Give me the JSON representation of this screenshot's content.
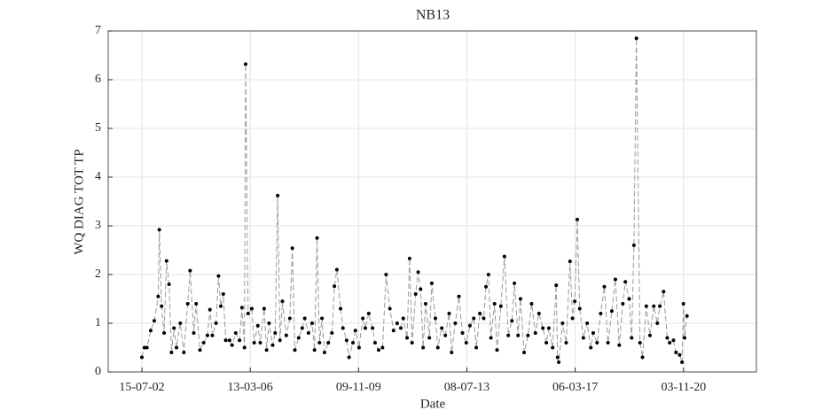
{
  "chart_data": {
    "type": "line",
    "title": "NB13",
    "xlabel": "Date",
    "ylabel": "WQ DIAG TOT TP",
    "x": [
      "15-07-02",
      "15-08-02",
      "15-09-02",
      "01-11-02",
      "15-12-02",
      "01-02-03",
      "15-02-03",
      "15-03-03",
      "15-04-03",
      "15-05-03",
      "15-06-03",
      "15-07-03",
      "15-08-03",
      "15-09-03",
      "01-11-03",
      "15-12-03",
      "01-02-04",
      "01-03-04",
      "15-04-04",
      "15-05-04",
      "01-07-04",
      "15-08-04",
      "01-10-04",
      "01-11-04",
      "01-12-04",
      "15-01-05",
      "15-02-05",
      "15-03-05",
      "15-04-05",
      "15-05-05",
      "01-07-05",
      "01-08-05",
      "15-09-05",
      "01-11-05",
      "01-12-05",
      "01-01-06",
      "15-01-06",
      "15-02-06",
      "01-04-06",
      "01-05-06",
      "15-06-06",
      "15-07-06",
      "01-09-06",
      "01-10-06",
      "01-11-06",
      "15-12-06",
      "15-01-07",
      "15-02-07",
      "15-03-07",
      "15-04-07",
      "01-06-07",
      "15-07-07",
      "15-08-07",
      "15-09-07",
      "01-11-07",
      "15-12-07",
      "15-01-08",
      "01-03-08",
      "15-04-08",
      "15-05-08",
      "15-06-08",
      "15-07-08",
      "15-08-08",
      "15-09-08",
      "01-11-08",
      "15-12-08",
      "15-01-09",
      "15-02-09",
      "01-04-09",
      "01-05-09",
      "15-06-09",
      "15-07-09",
      "01-09-09",
      "01-10-09",
      "15-11-09",
      "01-01-10",
      "01-02-10",
      "15-03-10",
      "01-05-10",
      "01-06-10",
      "15-07-10",
      "01-09-10",
      "15-10-10",
      "01-12-10",
      "15-01-11",
      "01-03-11",
      "15-04-11",
      "15-05-11",
      "01-07-11",
      "01-08-11",
      "01-09-11",
      "15-10-11",
      "15-11-11",
      "15-12-11",
      "15-01-12",
      "15-02-12",
      "01-04-12",
      "01-05-12",
      "15-06-12",
      "15-07-12",
      "01-09-12",
      "15-10-12",
      "01-12-12",
      "01-01-13",
      "15-02-13",
      "01-04-13",
      "15-05-13",
      "01-07-13",
      "15-08-13",
      "01-10-13",
      "01-11-13",
      "15-12-13",
      "01-02-14",
      "01-03-14",
      "01-04-14",
      "01-05-14",
      "15-06-14",
      "15-07-14",
      "01-09-14",
      "15-10-14",
      "01-12-14",
      "15-01-15",
      "15-02-15",
      "01-04-15",
      "01-05-15",
      "15-06-15",
      "01-08-15",
      "15-09-15",
      "01-11-15",
      "15-12-15",
      "01-02-16",
      "15-03-16",
      "15-04-16",
      "01-06-16",
      "15-07-16",
      "01-08-16",
      "15-08-16",
      "01-10-16",
      "15-11-16",
      "01-01-17",
      "01-02-17",
      "01-03-17",
      "01-04-17",
      "01-05-17",
      "15-06-17",
      "01-08-17",
      "15-09-17",
      "15-10-17",
      "01-12-17",
      "15-01-18",
      "01-03-18",
      "15-04-18",
      "01-06-18",
      "15-07-18",
      "01-09-18",
      "15-10-18",
      "15-11-18",
      "01-01-19",
      "01-02-19",
      "01-03-19",
      "01-04-19",
      "15-05-19",
      "15-06-19",
      "01-08-19",
      "15-09-19",
      "01-11-19",
      "15-12-19",
      "15-01-20",
      "01-03-20",
      "15-04-20",
      "15-05-20",
      "01-07-20",
      "01-08-20",
      "15-09-20",
      "15-10-20",
      "01-11-20",
      "15-11-20",
      "15-12-20"
    ],
    "series": [
      {
        "color": "#000000",
        "values": [
          0.3,
          0.5,
          0.5,
          0.85,
          1.05,
          1.55,
          2.92,
          1.35,
          0.8,
          2.28,
          1.8,
          0.4,
          0.9,
          0.5,
          1.0,
          0.4,
          1.4,
          2.08,
          0.8,
          1.4,
          0.45,
          0.6,
          0.75,
          1.28,
          0.75,
          1.0,
          1.97,
          1.35,
          1.6,
          0.65,
          0.65,
          0.55,
          0.8,
          0.65,
          1.32,
          0.5,
          6.32,
          1.2,
          1.3,
          0.6,
          0.95,
          0.6,
          1.3,
          0.45,
          1.0,
          0.55,
          0.8,
          3.62,
          0.65,
          1.45,
          0.75,
          1.1,
          2.54,
          0.45,
          0.7,
          0.9,
          1.1,
          0.8,
          1.0,
          0.45,
          2.75,
          0.6,
          1.1,
          0.4,
          0.6,
          0.8,
          1.76,
          2.1,
          1.3,
          0.9,
          0.65,
          0.3,
          0.6,
          0.85,
          0.5,
          1.1,
          0.9,
          1.2,
          0.9,
          0.6,
          0.45,
          0.5,
          2.0,
          1.3,
          0.85,
          1.0,
          0.9,
          1.1,
          0.7,
          2.33,
          0.6,
          1.6,
          2.05,
          1.7,
          0.5,
          1.4,
          0.7,
          1.82,
          1.1,
          0.5,
          0.9,
          0.75,
          1.2,
          0.4,
          1.0,
          1.55,
          0.8,
          0.6,
          0.95,
          1.1,
          0.5,
          1.2,
          1.1,
          1.75,
          2.0,
          0.7,
          1.4,
          0.45,
          1.35,
          2.37,
          0.75,
          1.05,
          1.82,
          0.75,
          1.5,
          0.4,
          0.75,
          1.4,
          0.8,
          1.2,
          0.9,
          0.6,
          0.9,
          0.5,
          1.78,
          0.3,
          0.2,
          1.0,
          0.6,
          2.27,
          1.1,
          1.45,
          3.13,
          1.3,
          0.7,
          1.0,
          0.5,
          0.8,
          0.6,
          1.2,
          1.75,
          0.6,
          1.25,
          1.9,
          0.55,
          1.4,
          1.85,
          1.5,
          0.7,
          2.6,
          6.85,
          0.6,
          0.3,
          1.35,
          0.75,
          1.35,
          1.0,
          1.35,
          1.65,
          0.7,
          0.6,
          0.65,
          0.4,
          0.35,
          0.2,
          1.4,
          0.7,
          1.15
        ]
      }
    ],
    "xlim": [
      "25-05-01",
      "21-04-23"
    ],
    "xticks": [
      "15-07-02",
      "13-03-06",
      "09-11-09",
      "08-07-13",
      "06-03-17",
      "03-11-20"
    ],
    "ylim": [
      0,
      7
    ],
    "yticks": [
      0,
      1,
      2,
      3,
      4,
      5,
      6,
      7
    ],
    "grid": true
  }
}
